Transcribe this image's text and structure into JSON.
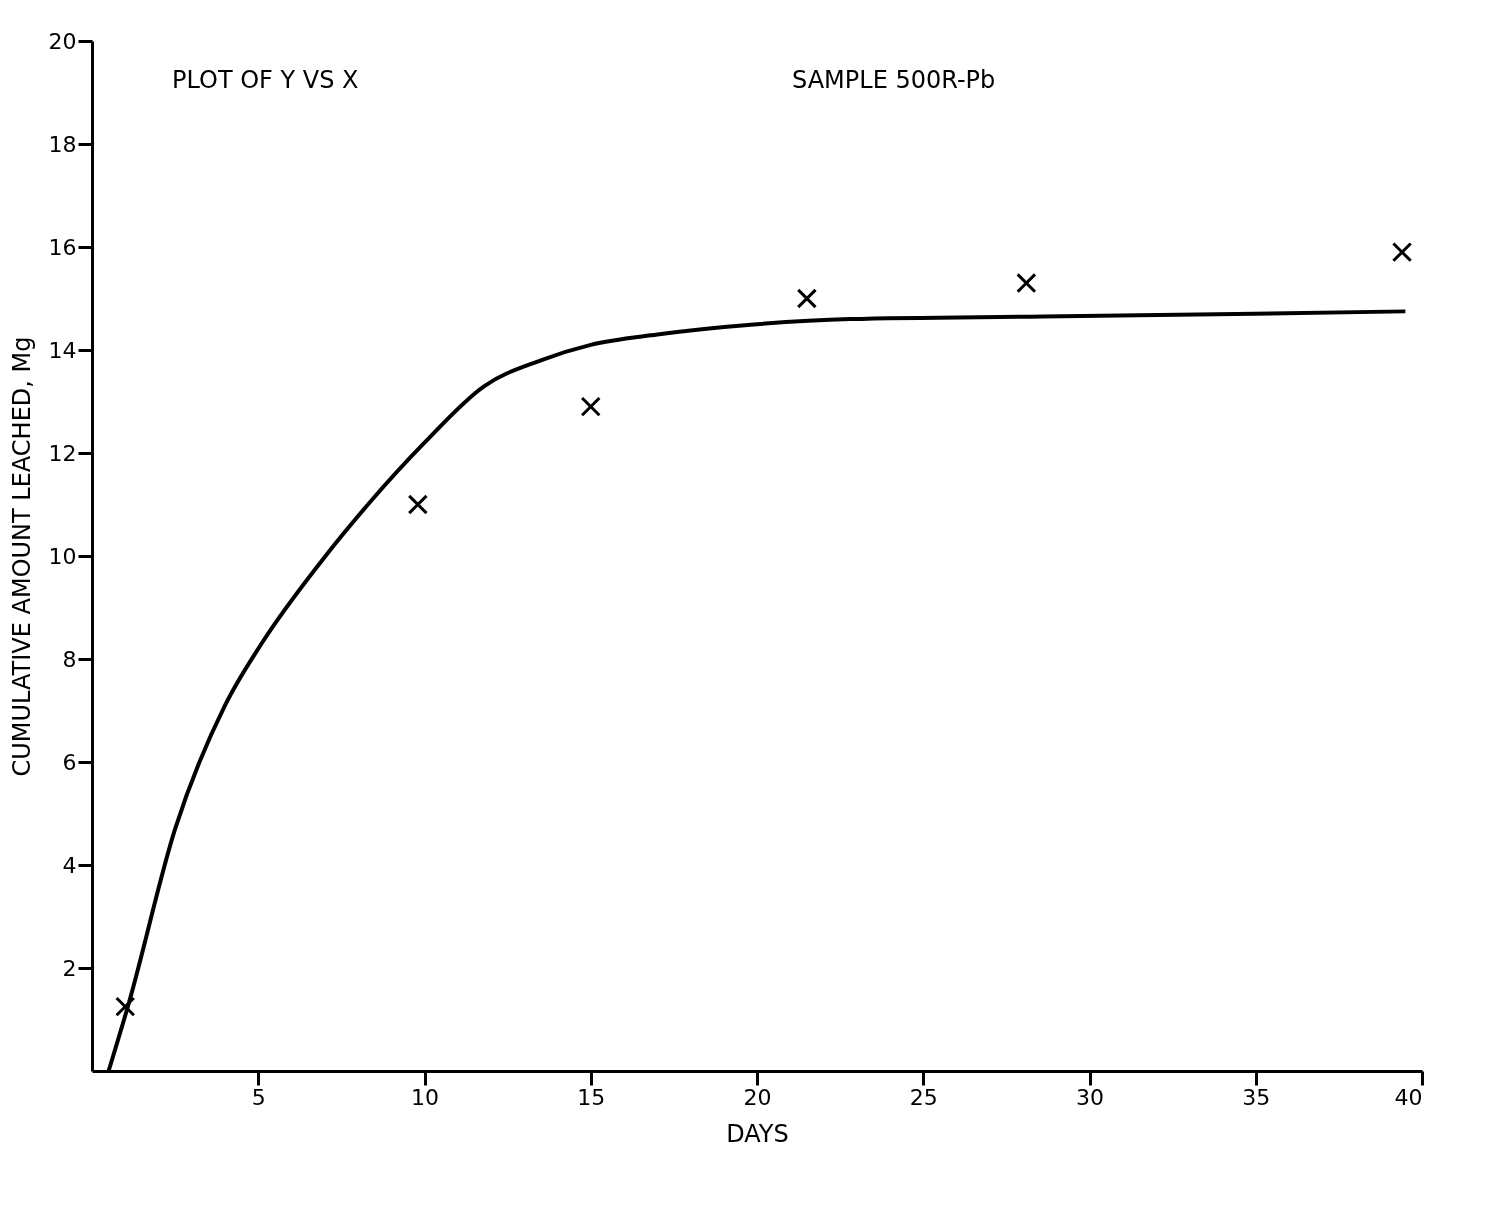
{
  "chart_data": {
    "type": "line",
    "xlabel": "DAYS",
    "ylabel": "CUMULATIVE AMOUNT LEACHED, Mg",
    "annotations": [
      "PLOT OF Y VS X",
      "SAMPLE 500R-Pb"
    ],
    "xlim": [
      0,
      40
    ],
    "ylim": [
      0,
      20
    ],
    "xticks": [
      5,
      10,
      15,
      20,
      25,
      30,
      35,
      40
    ],
    "yticks": [
      2,
      4,
      6,
      8,
      10,
      12,
      14,
      16,
      18,
      20
    ],
    "grid": false,
    "series": [
      {
        "color": "#000000",
        "marker": "none",
        "x": [
          0.5,
          1.1,
          2.5,
          4,
          5.1,
          6.9,
          8.3,
          10,
          11.8,
          13.5,
          15,
          17,
          20,
          22.8,
          28.6,
          34.4,
          39.5
        ],
        "values": [
          0,
          1.3,
          4.7,
          7.1,
          8.3,
          9.9,
          11.0,
          12.2,
          13.3,
          13.8,
          14.1,
          14.3,
          14.5,
          14.6,
          14.65,
          14.7,
          14.75
        ]
      },
      {
        "type": "scatter",
        "color": "#000000",
        "marker": "cross",
        "x": [
          1,
          9.8,
          15,
          21.5,
          28.1,
          39.4
        ],
        "values": [
          1.25,
          11.0,
          12.9,
          15.0,
          15.3,
          15.9
        ]
      }
    ]
  }
}
